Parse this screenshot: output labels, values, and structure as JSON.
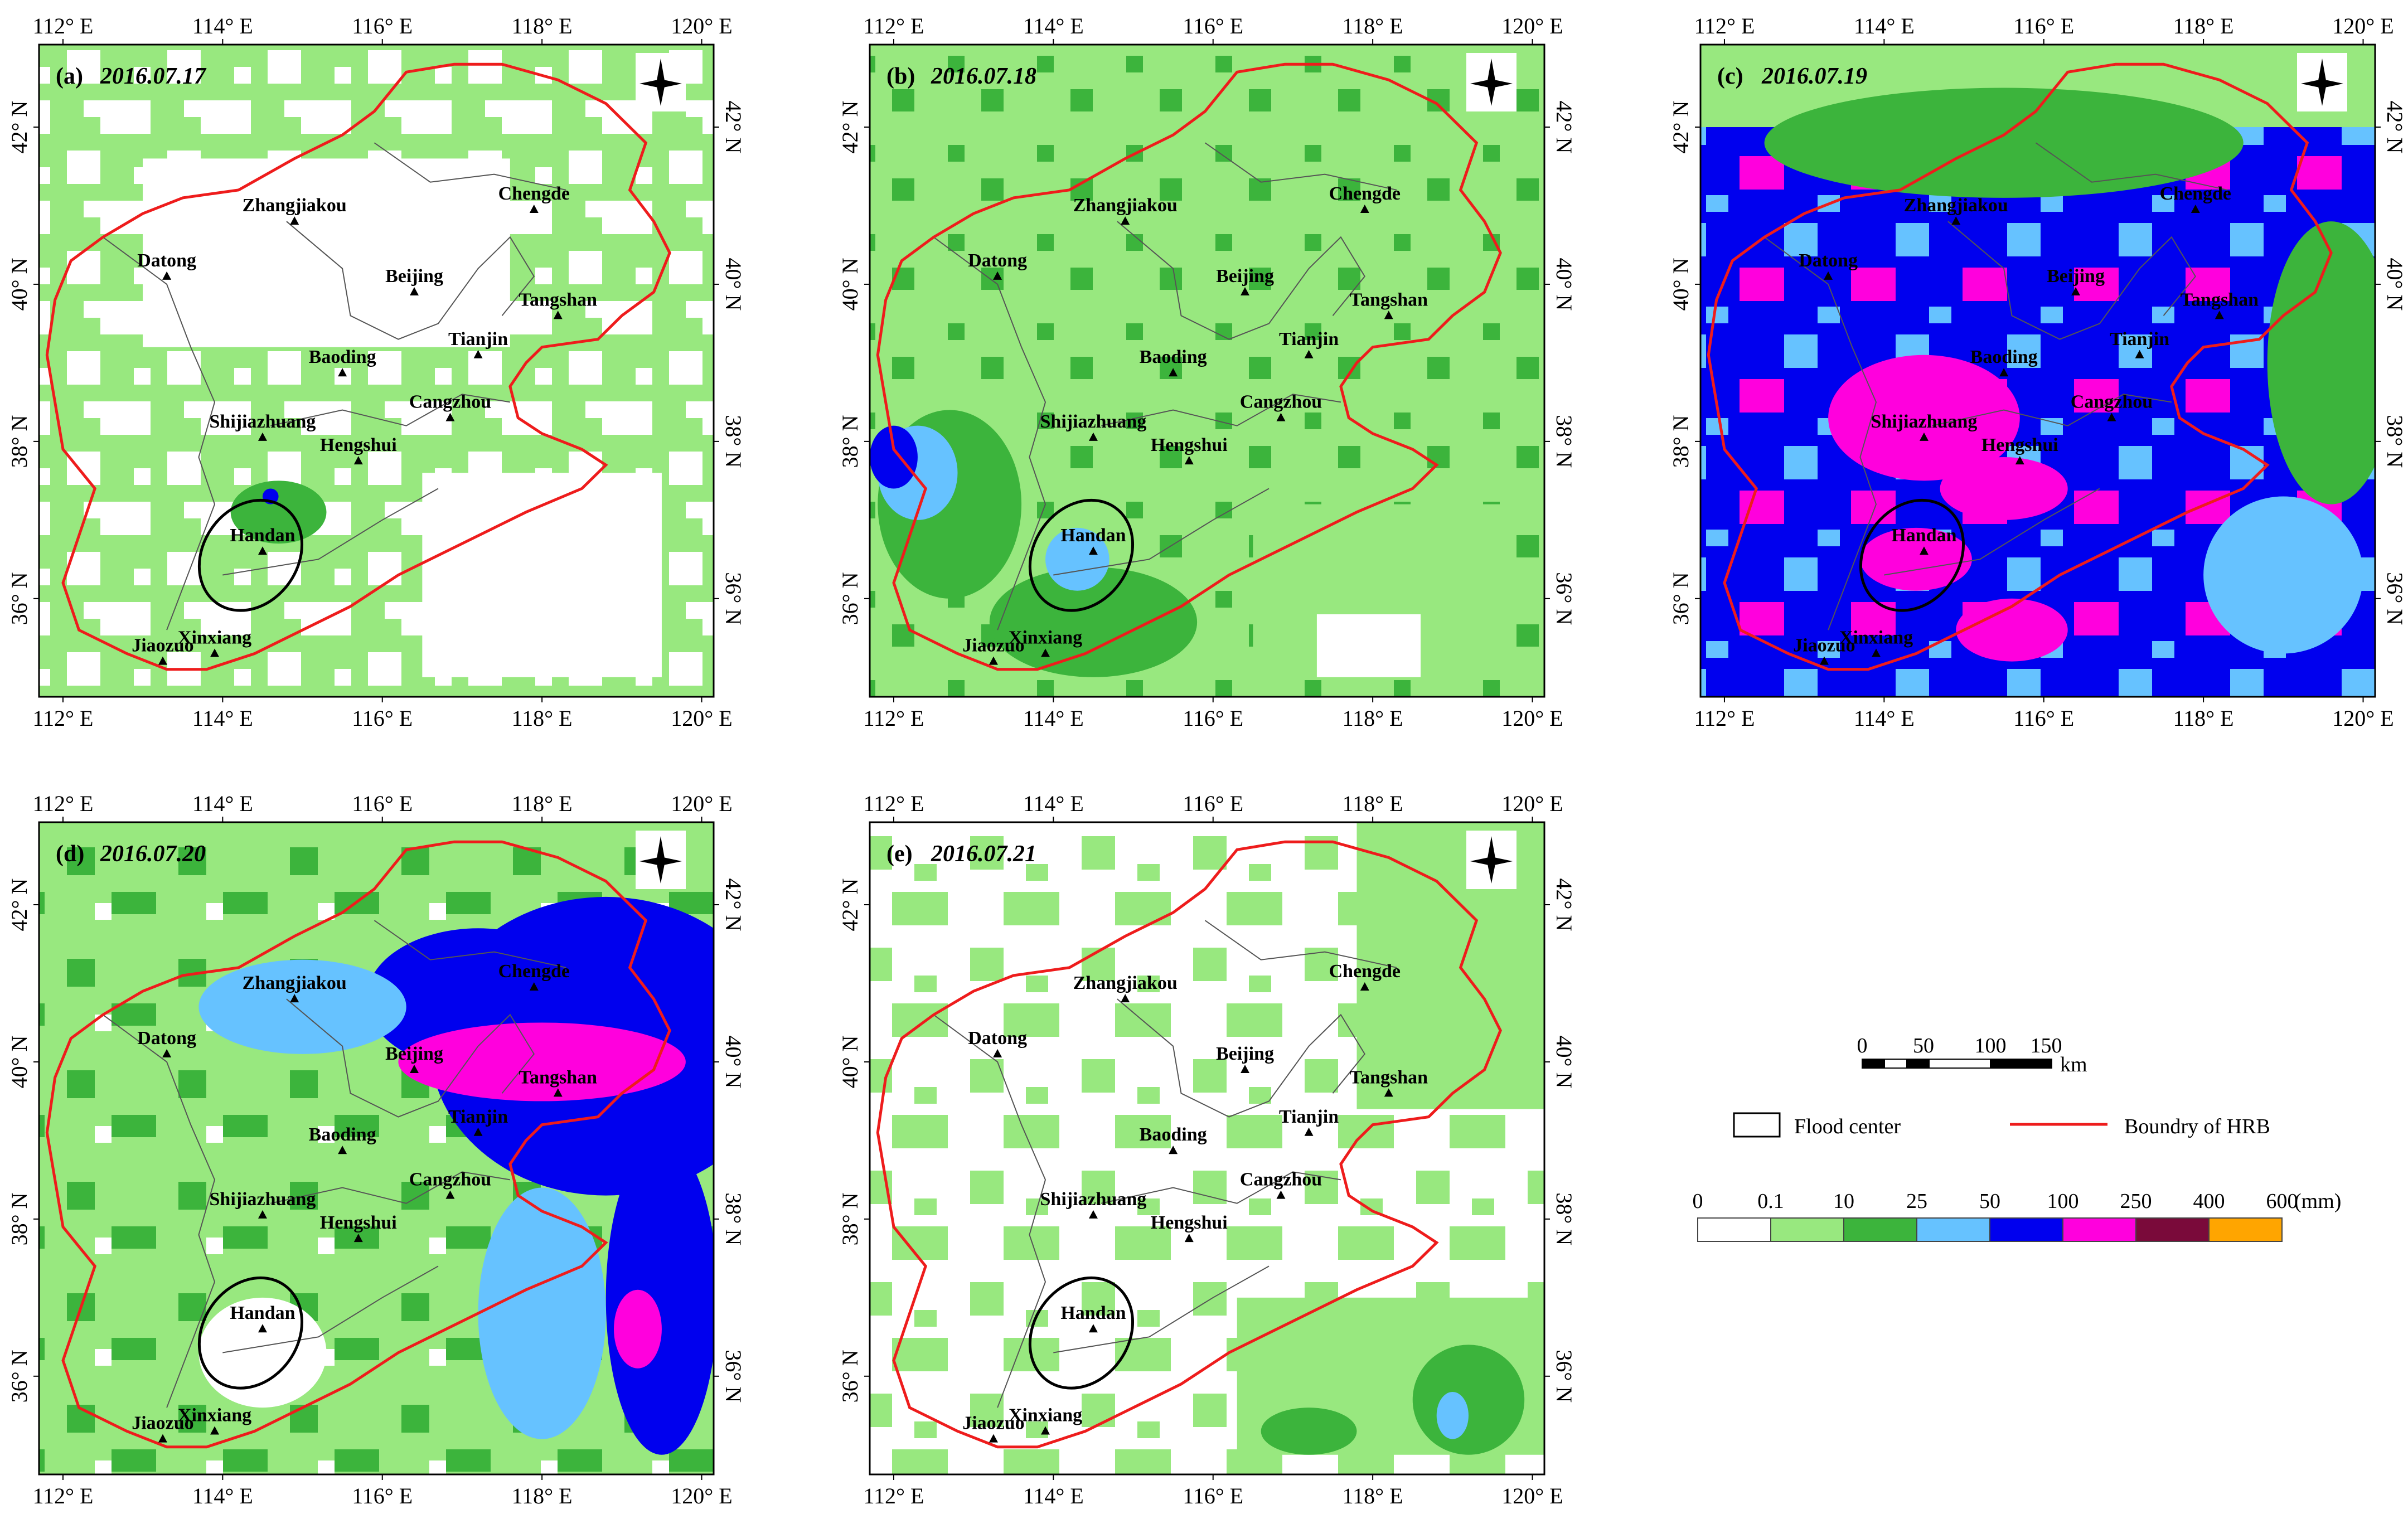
{
  "colors": {
    "boundary": "#ee1c1c",
    "ellipse": "#000000",
    "bins": [
      "#ffffff",
      "#98e87f",
      "#3cb43c",
      "#66c2ff",
      "#0000ee",
      "#ff00dd",
      "#7a0a3a",
      "#ffa500"
    ]
  },
  "axes": {
    "lon_ticks": [
      "112° E",
      "114° E",
      "116° E",
      "118° E",
      "120° E"
    ],
    "lat_ticks": [
      "42° N",
      "40° N",
      "38° N",
      "36° N"
    ]
  },
  "cities": [
    {
      "name": "Zhangjiakou",
      "lon": 114.9,
      "lat": 40.8
    },
    {
      "name": "Chengde",
      "lon": 117.9,
      "lat": 40.95
    },
    {
      "name": "Datong",
      "lon": 113.3,
      "lat": 40.1
    },
    {
      "name": "Beijing",
      "lon": 116.4,
      "lat": 39.9
    },
    {
      "name": "Tangshan",
      "lon": 118.2,
      "lat": 39.6
    },
    {
      "name": "Tianjin",
      "lon": 117.2,
      "lat": 39.1
    },
    {
      "name": "Baoding",
      "lon": 115.5,
      "lat": 38.87
    },
    {
      "name": "Cangzhou",
      "lon": 116.85,
      "lat": 38.3
    },
    {
      "name": "Shijiazhuang",
      "lon": 114.5,
      "lat": 38.05
    },
    {
      "name": "Hengshui",
      "lon": 115.7,
      "lat": 37.75
    },
    {
      "name": "Handan",
      "lon": 114.5,
      "lat": 36.6
    },
    {
      "name": "Jiaozuo",
      "lon": 113.25,
      "lat": 35.2
    },
    {
      "name": "Xinxiang",
      "lon": 113.9,
      "lat": 35.3
    }
  ],
  "panels": [
    {
      "label": "(a)",
      "date": "2016.07.17"
    },
    {
      "label": "(b)",
      "date": "2016.07.18"
    },
    {
      "label": "(c)",
      "date": "2016.07.19"
    },
    {
      "label": "(d)",
      "date": "2016.07.20"
    },
    {
      "label": "(e)",
      "date": "2016.07.21"
    }
  ],
  "scale_bar": {
    "ticks": [
      "0",
      "50",
      "100",
      "150"
    ],
    "unit": "km"
  },
  "legend": {
    "flood_center": "Flood center",
    "boundary": "Boundry of HRB",
    "bin_edges": [
      "0",
      "0.1",
      "10",
      "25",
      "50",
      "100",
      "250",
      "400",
      "600"
    ],
    "unit": "(mm)"
  }
}
